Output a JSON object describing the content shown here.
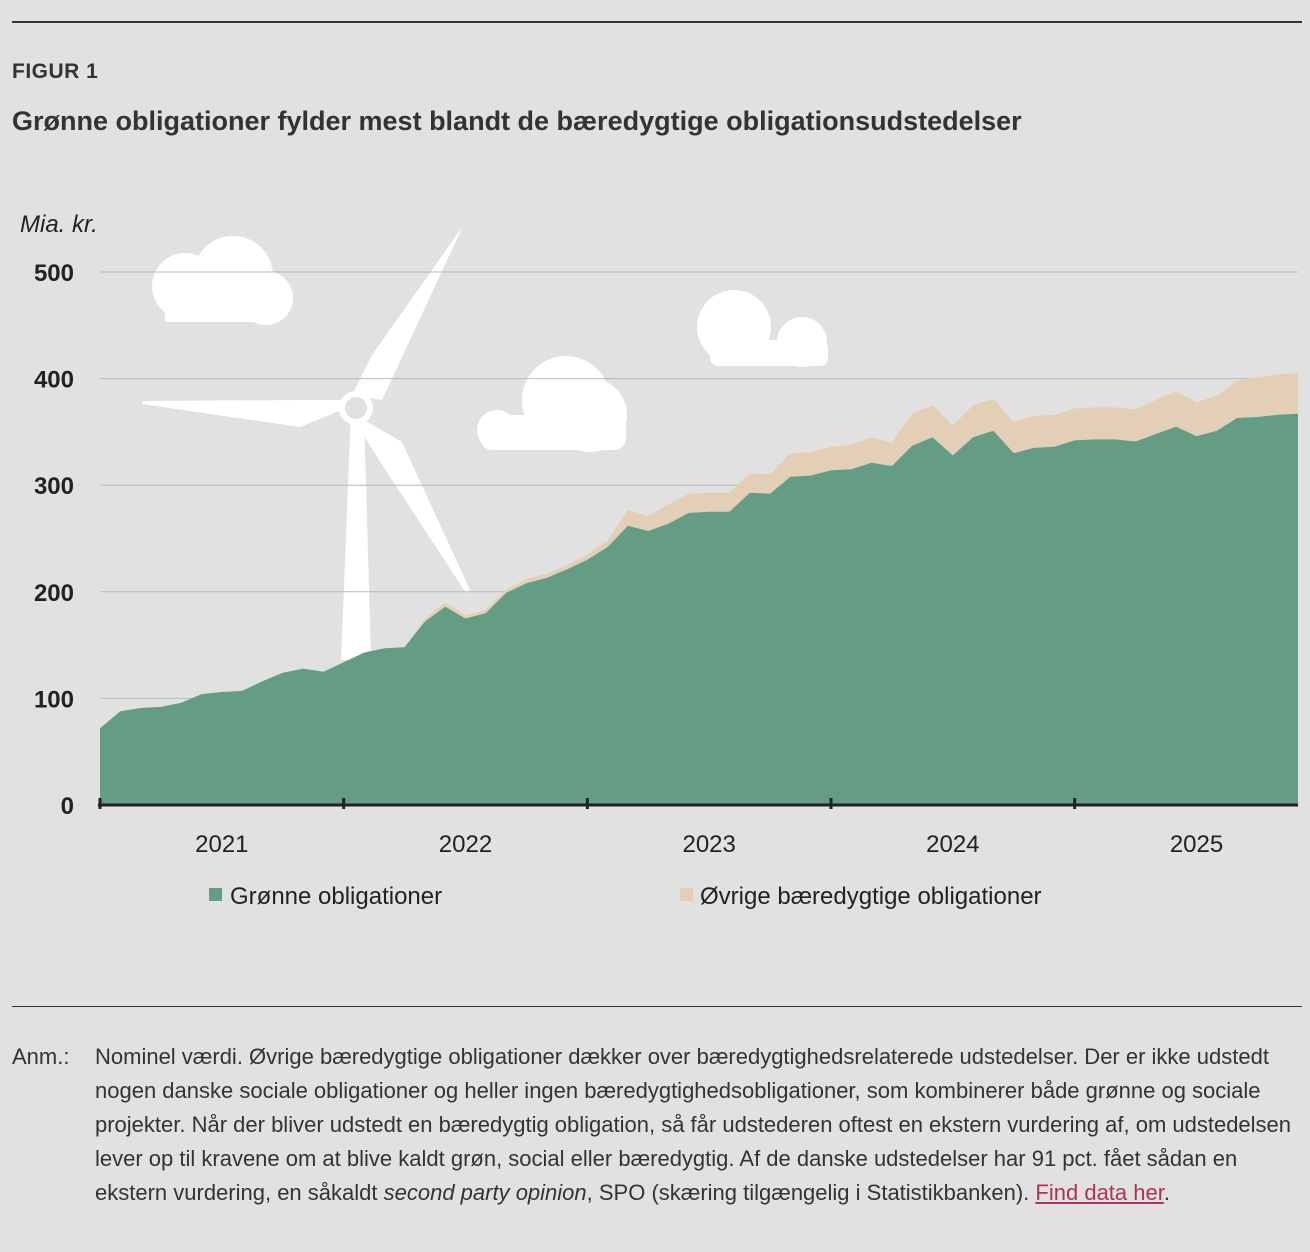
{
  "figure": {
    "label": "FIGUR 1",
    "title": "Grønne obligationer fylder mest blandt de bæredygtige obligationsudstedelser"
  },
  "chart_data": {
    "type": "area",
    "stacked": true,
    "unit_label": "Mia. kr.",
    "ylim": [
      0,
      500
    ],
    "y_ticks": [
      "0",
      "100",
      "200",
      "300",
      "400",
      "500"
    ],
    "x_ticks": [
      "2021",
      "2022",
      "2023",
      "2024",
      "2025"
    ],
    "grid": true,
    "x_start": 2020.5,
    "x_step": 0.08333,
    "series": [
      {
        "name": "Grønne obligationer",
        "color": "#659d84",
        "values": [
          72,
          88,
          91,
          92,
          96,
          104,
          106,
          107,
          116,
          124,
          128,
          125,
          134,
          143,
          147,
          148,
          172,
          186,
          175,
          180,
          199,
          208,
          213,
          221,
          230,
          242,
          262,
          257,
          264,
          274,
          275,
          275,
          293,
          292,
          308,
          309,
          314,
          315,
          321,
          318,
          337,
          345,
          328,
          345,
          351,
          330,
          335,
          336,
          342,
          343,
          343,
          341,
          348,
          355,
          346,
          351,
          363,
          364,
          366,
          367
        ]
      },
      {
        "name": "Øvrige bæredygtige obligationer",
        "color": "#e2cfb6",
        "values": [
          0,
          0,
          0,
          0,
          0,
          0,
          0,
          0,
          0,
          0,
          0,
          0,
          0,
          0,
          0,
          0,
          3,
          4,
          3,
          3,
          3,
          4,
          4,
          4,
          5,
          6,
          15,
          14,
          18,
          18,
          18,
          18,
          18,
          18,
          22,
          22,
          22,
          23,
          24,
          22,
          30,
          30,
          28,
          30,
          30,
          29,
          30,
          30,
          30,
          30,
          30,
          30,
          32,
          33,
          32,
          33,
          35,
          37,
          38,
          38
        ]
      }
    ],
    "legend": [
      "Grønne obligationer",
      "Øvrige bæredygtige obligationer"
    ]
  },
  "note": {
    "prefix": "Anm.:",
    "text": "Nominel værdi. Øvrige bæredygtige obligationer dækker over bæredygtighedsrelaterede udstedelser. Der er ikke udstedt nogen danske sociale obligationer og heller ingen bæredygtighedsobligationer, som kombinerer både grønne og sociale projekter. Når der bliver udstedt en bæredygtig obligation, så får udstederen oftest en ekstern vurdering af, om udstedelsen lever op til kravene om at blive kaldt grøn, social eller bæredygtig. Af de danske udstedelser har 91 pct. fået sådan en ekstern vurdering, en såkaldt",
    "italic": "second party opinion",
    "text_after": ", SPO (skæring tilgængelig i Statistikbanken).",
    "link": "Find data her",
    "end": "."
  }
}
